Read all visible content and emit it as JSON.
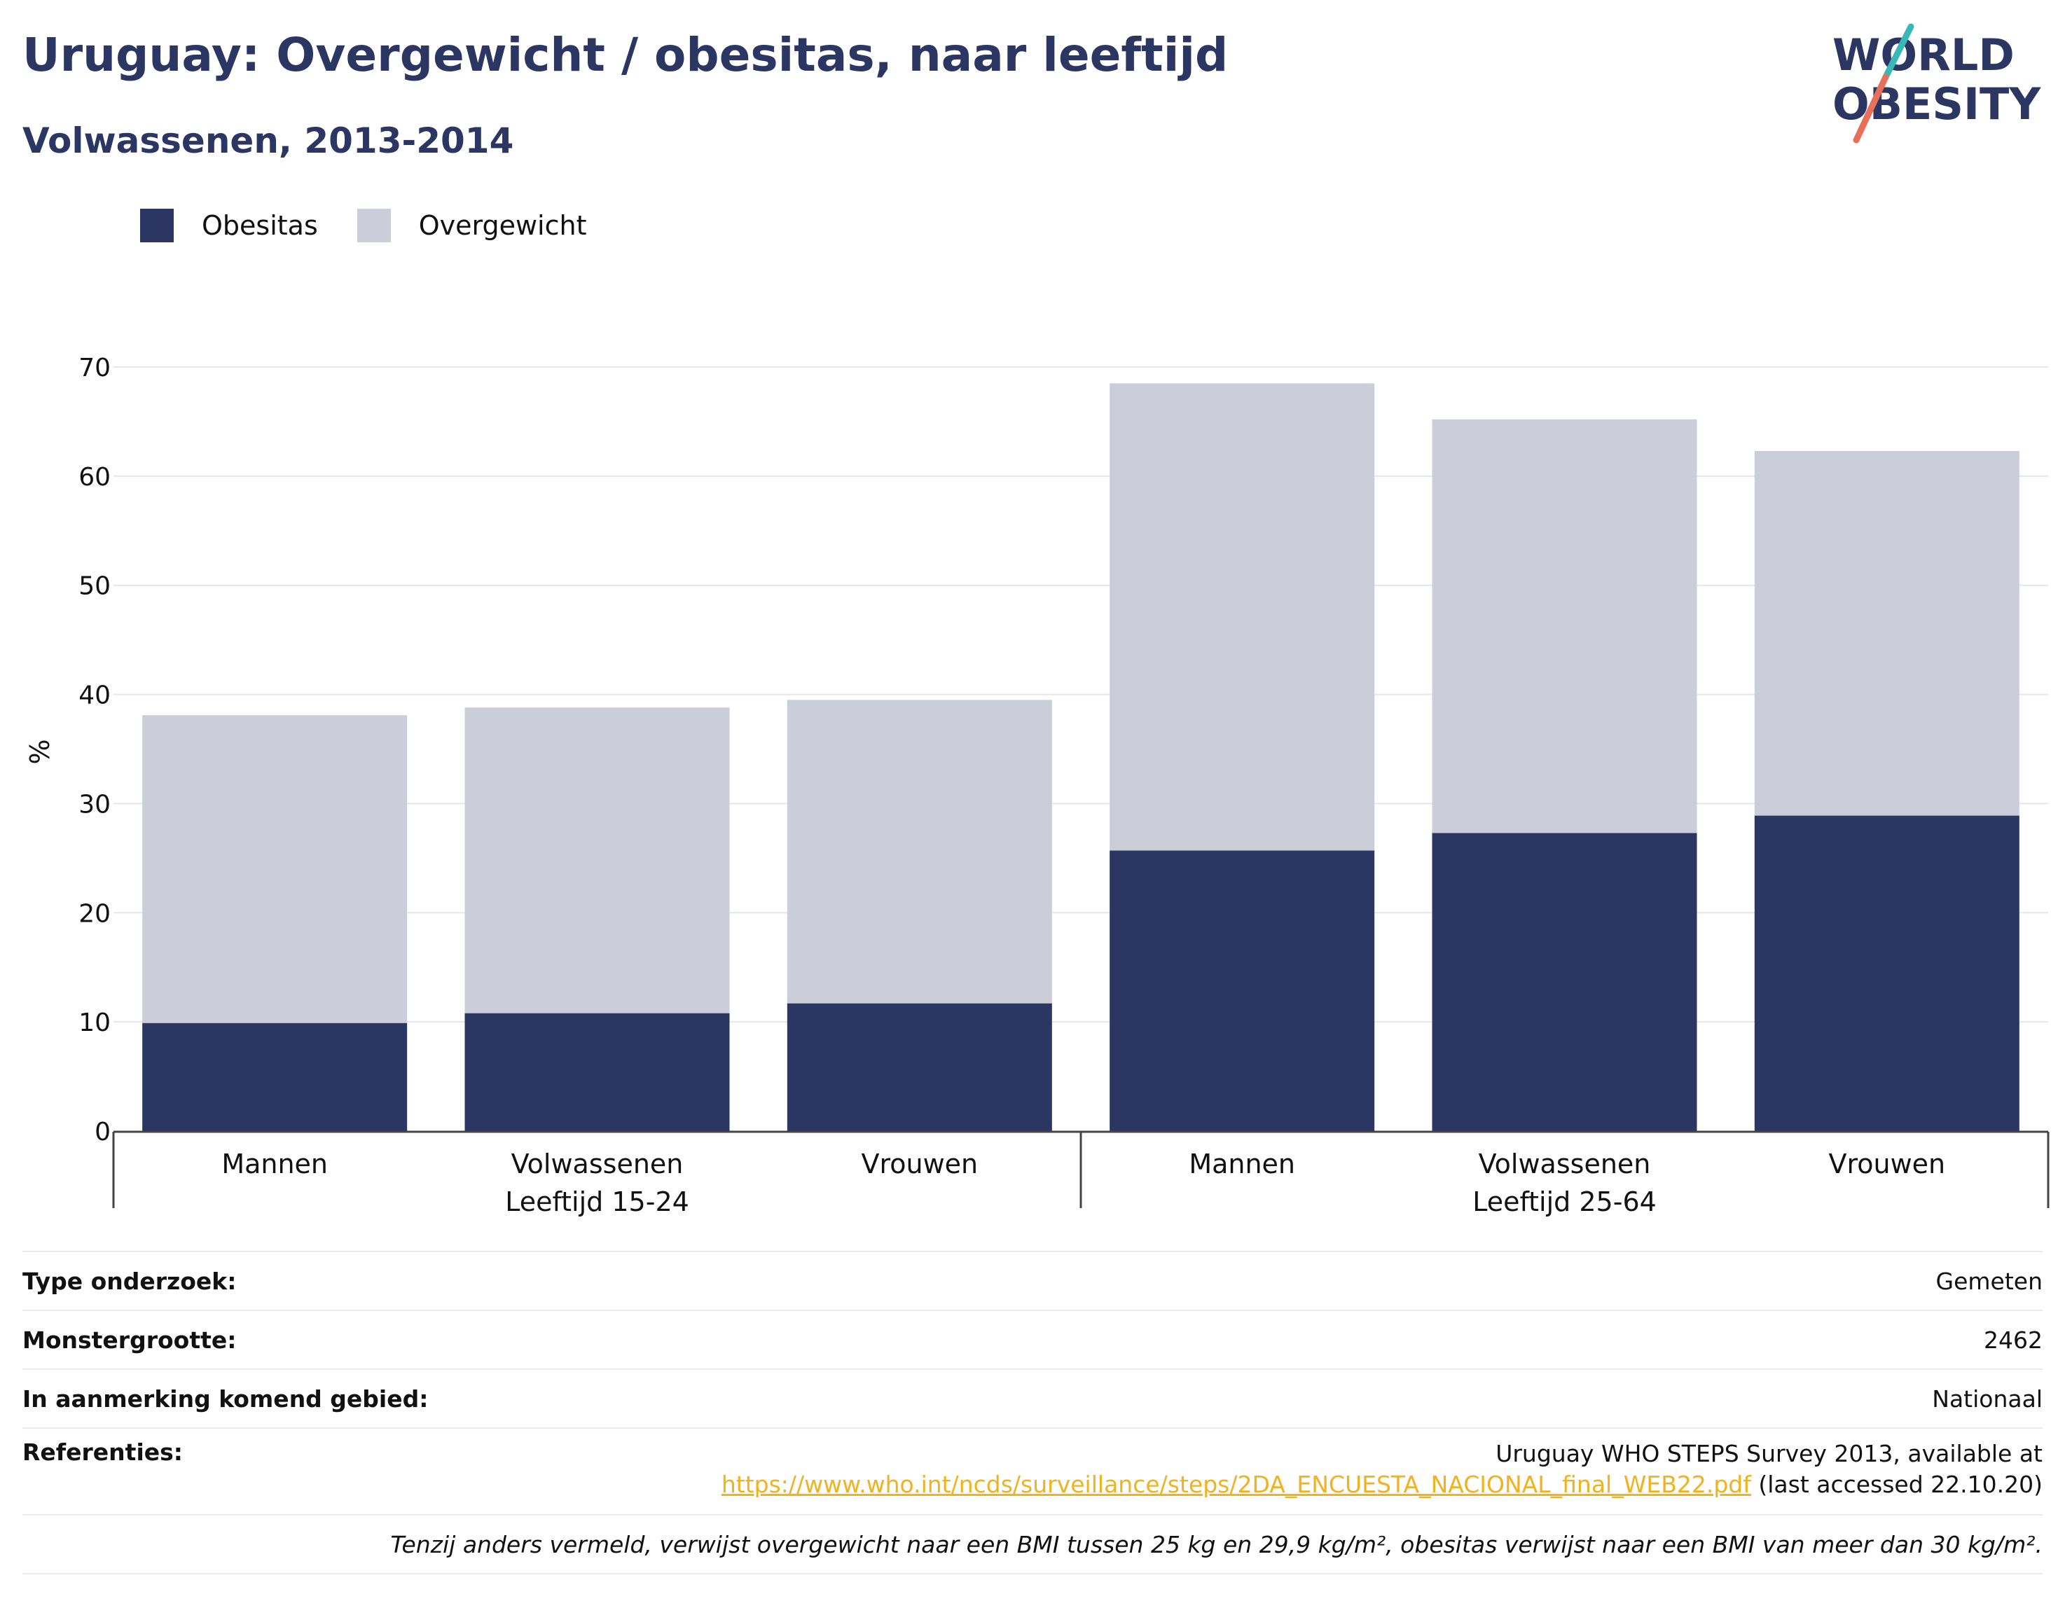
{
  "header": {
    "title": "Uruguay: Overgewicht / obesitas, naar leeftijd",
    "subtitle": "Volwassenen, 2013-2014"
  },
  "logo": {
    "line1": "WORLD",
    "line2": "OBESITY"
  },
  "colors": {
    "obesitas": "#2b3663",
    "overgewicht": "#cbcdd9",
    "title": "#2b3663",
    "link": "#f2b21e",
    "logo_teal": "#3ab8b7",
    "logo_coral": "#e8705a"
  },
  "legend": [
    {
      "label": "Obesitas",
      "color": "#2b3663"
    },
    {
      "label": "Overgewicht",
      "color": "#cbcdd9"
    }
  ],
  "chart_data": {
    "type": "bar",
    "stacked": true,
    "ylabel": "%",
    "ylim": [
      0,
      70
    ],
    "yticks": [
      0,
      10,
      20,
      30,
      40,
      50,
      60,
      70
    ],
    "grid": true,
    "legend_position": "top-left",
    "groups": [
      {
        "label": "Leeftijd 15-24",
        "categories": [
          "Mannen",
          "Volwassenen",
          "Vrouwen"
        ]
      },
      {
        "label": "Leeftijd 25-64",
        "categories": [
          "Mannen",
          "Volwassenen",
          "Vrouwen"
        ]
      }
    ],
    "categories": [
      "Mannen",
      "Volwassenen",
      "Vrouwen",
      "Mannen",
      "Volwassenen",
      "Vrouwen"
    ],
    "series": [
      {
        "name": "Obesitas",
        "values": [
          9.9,
          10.8,
          11.7,
          25.7,
          27.3,
          28.9
        ]
      },
      {
        "name": "Overgewicht",
        "values": [
          28.2,
          28.0,
          27.8,
          42.8,
          37.9,
          33.4
        ]
      }
    ]
  },
  "info": {
    "type_label": "Type onderzoek:",
    "type_value": "Gemeten",
    "sample_label": "Monstergrootte:",
    "sample_value": "2462",
    "area_label": "In aanmerking komend gebied:",
    "area_value": "Nationaal",
    "ref_label": "Referenties:",
    "ref_line1": "Uruguay WHO STEPS Survey 2013, available at",
    "ref_link": "https://www.who.int/ncds/surveillance/steps/2DA_ENCUESTA_NACIONAL_final_WEB22.pdf",
    "ref_suffix": " (last accessed 22.10.20)",
    "footnote": "Tenzij anders vermeld, verwijst overgewicht naar een BMI tussen 25 kg en 29,9 kg/m², obesitas verwijst naar een BMI van meer dan 30 kg/m²."
  }
}
